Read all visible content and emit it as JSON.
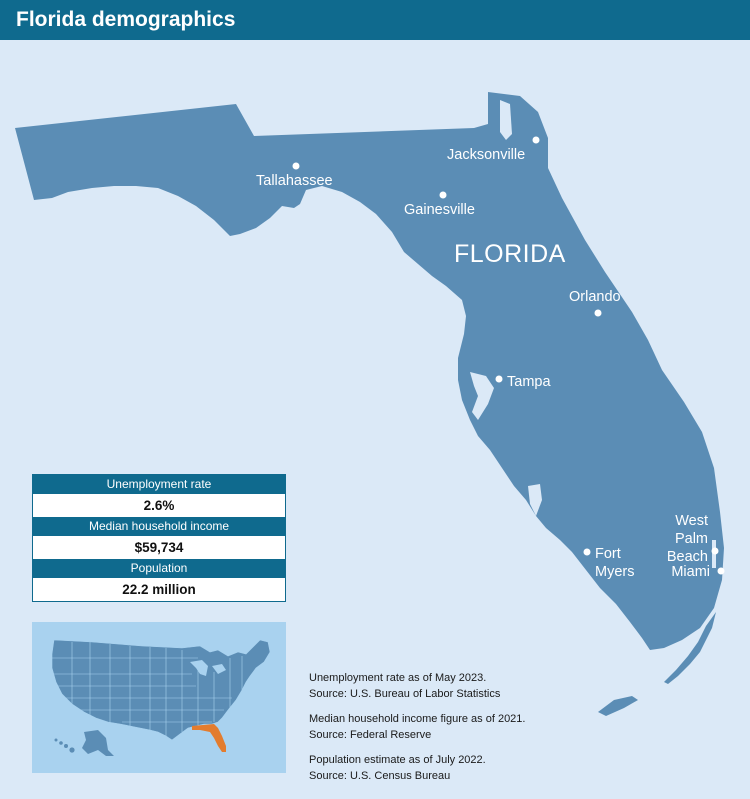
{
  "header": {
    "title": "Florida demographics"
  },
  "map": {
    "state_label": "FLORIDA",
    "land_color": "#5b8db5",
    "water_color": "#dbe9f7",
    "highlight_color": "#e37c2e",
    "cities": [
      {
        "name": "Jacksonville",
        "lat": 30.33,
        "lon": -81.66
      },
      {
        "name": "Tallahassee",
        "lat": 30.44,
        "lon": -84.28
      },
      {
        "name": "Gainesville",
        "lat": 29.65,
        "lon": -82.32
      },
      {
        "name": "Orlando",
        "lat": 28.54,
        "lon": -81.38
      },
      {
        "name": "Tampa",
        "lat": 27.95,
        "lon": -82.46
      },
      {
        "name": "Fort Myers",
        "lat": 26.64,
        "lon": -81.87
      },
      {
        "name": "West Palm Beach",
        "lat": 26.72,
        "lon": -80.05
      },
      {
        "name": "Miami",
        "lat": 25.76,
        "lon": -80.19
      }
    ]
  },
  "stats": {
    "unemployment_label": "Unemployment rate",
    "unemployment_value": "2.6%",
    "income_label": "Median household income",
    "income_value": "$59,734",
    "population_label": "Population",
    "population_value": "22.2 million"
  },
  "notes": [
    {
      "line1": "Unemployment rate as of May 2023.",
      "line2": "Source: U.S. Bureau of Labor Statistics"
    },
    {
      "line1": "Median household income figure as of 2021.",
      "line2": "Source: Federal Reserve"
    },
    {
      "line1": "Population estimate as of July 2022.",
      "line2": "Source: U.S. Census Bureau"
    }
  ]
}
